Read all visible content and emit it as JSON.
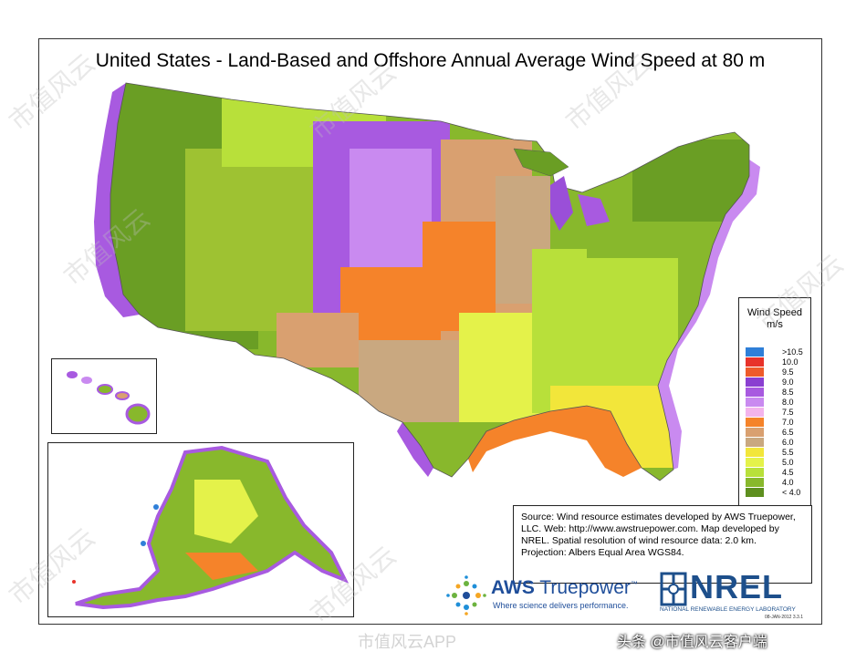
{
  "map": {
    "title": "United States - Land-Based and Offshore Annual Average Wind Speed at 80 m"
  },
  "legend": {
    "title_line1": "Wind Speed",
    "title_line2": "m/s",
    "items": [
      {
        "label": ">10.5",
        "color": "#2f7fd8"
      },
      {
        "label": "10.0",
        "color": "#e8322a"
      },
      {
        "label": "9.5",
        "color": "#ee5b2b"
      },
      {
        "label": "9.0",
        "color": "#8a3fd1"
      },
      {
        "label": "8.5",
        "color": "#a85ae0"
      },
      {
        "label": "8.0",
        "color": "#c98af0"
      },
      {
        "label": "7.5",
        "color": "#f3b4ec"
      },
      {
        "label": "7.0",
        "color": "#f5832a"
      },
      {
        "label": "6.5",
        "color": "#d9a070"
      },
      {
        "label": "6.0",
        "color": "#c9a880"
      },
      {
        "label": "5.5",
        "color": "#f2e63a"
      },
      {
        "label": "5.0",
        "color": "#e4f24a"
      },
      {
        "label": "4.5",
        "color": "#b8e03a"
      },
      {
        "label": "4.0",
        "color": "#88b82c"
      },
      {
        "label": "< 4.0",
        "color": "#5e8f1f"
      }
    ]
  },
  "source": {
    "line1": "Source: Wind resource estimates developed by AWS Truepower,",
    "line2": "LLC.  Web: http://www.awstruepower.com. Map developed by",
    "line3": "NREL.  Spatial resolution of wind resource data: 2.0 km.",
    "line4": "Projection: Albers Equal Area WGS84."
  },
  "logos": {
    "aws_bold": "AWS",
    "aws_rest": " Truepower",
    "aws_tm": "™",
    "aws_tagline": "Where science delivers performance.",
    "nrel": "NREL",
    "nrel_sub": "NATIONAL RENEWABLE ENERGY LABORATORY",
    "date_code": "08-JAN-2012 3.3.1"
  },
  "overlay": {
    "credit": "头条 @市值风云客户端",
    "app_watermark": "市值风云APP",
    "watermark": "市值风云"
  }
}
